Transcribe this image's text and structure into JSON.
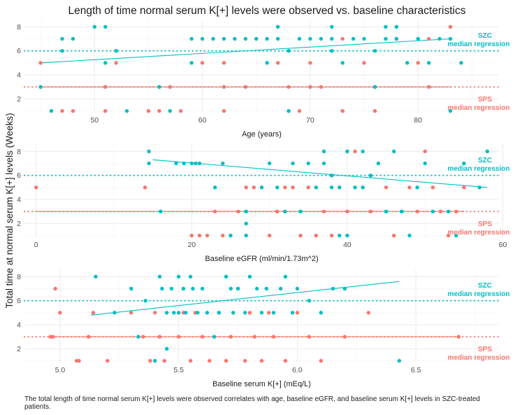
{
  "title": "Length of time normal serum K[+] levels were observed vs. baseline characteristics",
  "ylabel": "Total time at normal serum K[+] levels (Weeks)",
  "caption": "The total length of time normal serum K[+] levels were observed correlates with age, baseline eGFR, and baseline serum K[+] levels in SZC-treated patients.",
  "colors": {
    "SZC": "#00BFC4",
    "SPS": "#F8766D",
    "grid": "#ebebeb",
    "panel": "#ffffff"
  },
  "chart_data": [
    {
      "type": "scatter",
      "xlabel": "Age (years)",
      "xlim": [
        43.5,
        87.5
      ],
      "ylim": [
        0.8,
        8.6
      ],
      "xticks": [
        "50",
        "60",
        "70",
        "80"
      ],
      "yticks": [
        "2",
        "4",
        "6",
        "8"
      ],
      "grid": true,
      "annotations": [
        {
          "series": "SZC",
          "label": "SZC",
          "sublabel": "median regression",
          "y": 7.1
        },
        {
          "series": "SPS",
          "label": "SPS",
          "sublabel": "median regression",
          "y": 1.8
        }
      ],
      "series": [
        {
          "name": "SZC",
          "points": [
            [
              45,
              3
            ],
            [
              46,
              1
            ],
            [
              47,
              6
            ],
            [
              47,
              7
            ],
            [
              48,
              7
            ],
            [
              50,
              8
            ],
            [
              51,
              8
            ],
            [
              51,
              5
            ],
            [
              52,
              6
            ],
            [
              53,
              1
            ],
            [
              56,
              3
            ],
            [
              57,
              1
            ],
            [
              59,
              5
            ],
            [
              59,
              7
            ],
            [
              60,
              7
            ],
            [
              61,
              7
            ],
            [
              62,
              7
            ],
            [
              63,
              7
            ],
            [
              64,
              7
            ],
            [
              65,
              7
            ],
            [
              66,
              7
            ],
            [
              66,
              5
            ],
            [
              67,
              8
            ],
            [
              67,
              7
            ],
            [
              68,
              6
            ],
            [
              68,
              1
            ],
            [
              69,
              7
            ],
            [
              70,
              7
            ],
            [
              71,
              7
            ],
            [
              72,
              8
            ],
            [
              72,
              7
            ],
            [
              72,
              6
            ],
            [
              73,
              5
            ],
            [
              74,
              7
            ],
            [
              75,
              7
            ],
            [
              76,
              6
            ],
            [
              76,
              3
            ],
            [
              77,
              8
            ],
            [
              77,
              7
            ],
            [
              78,
              8
            ],
            [
              78,
              7
            ],
            [
              79,
              5
            ],
            [
              80,
              7
            ],
            [
              81,
              5
            ],
            [
              82,
              7
            ],
            [
              83,
              7
            ],
            [
              83,
              1
            ],
            [
              84,
              5
            ]
          ],
          "trend": {
            "style": "solid",
            "x": [
              45,
              83
            ],
            "y": [
              5.0,
              7.0
            ]
          },
          "median": 6
        },
        {
          "name": "SPS",
          "points": [
            [
              45,
              5
            ],
            [
              47,
              1
            ],
            [
              48,
              1
            ],
            [
              51,
              3
            ],
            [
              51,
              1
            ],
            [
              52,
              5
            ],
            [
              55,
              1
            ],
            [
              56,
              1
            ],
            [
              57,
              3
            ],
            [
              58,
              1
            ],
            [
              60,
              5
            ],
            [
              62,
              5
            ],
            [
              62,
              3
            ],
            [
              62,
              1
            ],
            [
              64,
              3
            ],
            [
              65,
              7
            ],
            [
              67,
              5
            ],
            [
              68,
              3
            ],
            [
              69,
              1
            ],
            [
              70,
              3
            ],
            [
              70,
              5
            ],
            [
              71,
              3
            ],
            [
              73,
              1
            ],
            [
              73,
              7
            ],
            [
              75,
              5
            ],
            [
              76,
              3
            ],
            [
              76,
              1
            ],
            [
              78,
              7
            ],
            [
              80,
              5
            ],
            [
              81,
              3
            ],
            [
              81,
              7
            ],
            [
              83,
              8
            ]
          ],
          "median": 3
        }
      ]
    },
    {
      "type": "scatter",
      "xlabel": "Baseline eGFR (ml/min/1.73m^2)",
      "xlim": [
        -1.5,
        59.5
      ],
      "ylim": [
        0.8,
        8.6
      ],
      "xticks": [
        "0",
        "20",
        "40",
        "60"
      ],
      "yticks": [
        "2",
        "4",
        "6",
        "8"
      ],
      "grid": true,
      "annotations": [
        {
          "series": "SZC",
          "label": "SZC",
          "sublabel": "median regression",
          "y": 7.1
        },
        {
          "series": "SPS",
          "label": "SPS",
          "sublabel": "median regression",
          "y": 1.8
        }
      ],
      "series": [
        {
          "name": "SZC",
          "points": [
            [
              14.5,
              8
            ],
            [
              14.5,
              7
            ],
            [
              16,
              3
            ],
            [
              18,
              7
            ],
            [
              19,
              7
            ],
            [
              20,
              7
            ],
            [
              20.5,
              7
            ],
            [
              21,
              7
            ],
            [
              23,
              5
            ],
            [
              24,
              7
            ],
            [
              25,
              1
            ],
            [
              27,
              3
            ],
            [
              27,
              2
            ],
            [
              27,
              1
            ],
            [
              29,
              5
            ],
            [
              30,
              7
            ],
            [
              31,
              5
            ],
            [
              32,
              3
            ],
            [
              33,
              7
            ],
            [
              34,
              3
            ],
            [
              35,
              7
            ],
            [
              36,
              5
            ],
            [
              37,
              8
            ],
            [
              37,
              7
            ],
            [
              38,
              5
            ],
            [
              38,
              6
            ],
            [
              39,
              5
            ],
            [
              39,
              1
            ],
            [
              40,
              8
            ],
            [
              40,
              1
            ],
            [
              41,
              5
            ],
            [
              42,
              8
            ],
            [
              42,
              5
            ],
            [
              43,
              6
            ],
            [
              44,
              7
            ],
            [
              45,
              3
            ],
            [
              46,
              8
            ],
            [
              47,
              3
            ],
            [
              48,
              1
            ],
            [
              49,
              5
            ],
            [
              50,
              7
            ],
            [
              51,
              3
            ],
            [
              53,
              3
            ],
            [
              54,
              1
            ],
            [
              55,
              7
            ],
            [
              57,
              5
            ],
            [
              58,
              8
            ]
          ],
          "trend": {
            "style": "solid",
            "x": [
              15,
              58
            ],
            "y": [
              7.3,
              5.0
            ]
          },
          "median": 6
        },
        {
          "name": "SPS",
          "points": [
            [
              0,
              5
            ],
            [
              14,
              5
            ],
            [
              20,
              1
            ],
            [
              21,
              1
            ],
            [
              22,
              1
            ],
            [
              23,
              3
            ],
            [
              24,
              1
            ],
            [
              25,
              1
            ],
            [
              26,
              3
            ],
            [
              27,
              5
            ],
            [
              28,
              5
            ],
            [
              29,
              5
            ],
            [
              30,
              1
            ],
            [
              31,
              3
            ],
            [
              32,
              5
            ],
            [
              33,
              5
            ],
            [
              34,
              1
            ],
            [
              35,
              5
            ],
            [
              36,
              1
            ],
            [
              37,
              3
            ],
            [
              38,
              1
            ],
            [
              39,
              5
            ],
            [
              40,
              3
            ],
            [
              41,
              8
            ],
            [
              42,
              5
            ],
            [
              43,
              3
            ],
            [
              44,
              7
            ],
            [
              45,
              5
            ],
            [
              46,
              1
            ],
            [
              47,
              3
            ],
            [
              48,
              5
            ],
            [
              49,
              3
            ],
            [
              50,
              8
            ],
            [
              51,
              5
            ],
            [
              52,
              3
            ],
            [
              53,
              1
            ],
            [
              54,
              3
            ],
            [
              55,
              5
            ]
          ],
          "median": 3
        }
      ]
    },
    {
      "type": "scatter",
      "xlabel": "Baseline serum K[+] (mEq/L)",
      "xlim": [
        4.85,
        6.85
      ],
      "ylim": [
        0.8,
        8.6
      ],
      "xticks": [
        "5.0",
        "5.5",
        "6.0",
        "6.5"
      ],
      "yticks": [
        "2",
        "4",
        "6",
        "8"
      ],
      "grid": true,
      "annotations": [
        {
          "series": "SZC",
          "label": "SZC",
          "sublabel": "median regression",
          "y": 7.1
        },
        {
          "series": "SPS",
          "label": "SPS",
          "sublabel": "median regression",
          "y": 1.8
        }
      ],
      "series": [
        {
          "name": "SZC",
          "points": [
            [
              5.15,
              8
            ],
            [
              5.23,
              5
            ],
            [
              5.3,
              7
            ],
            [
              5.33,
              3
            ],
            [
              5.36,
              6
            ],
            [
              5.4,
              1
            ],
            [
              5.42,
              8
            ],
            [
              5.43,
              7
            ],
            [
              5.45,
              5
            ],
            [
              5.45,
              2
            ],
            [
              5.47,
              7
            ],
            [
              5.48,
              5
            ],
            [
              5.5,
              8
            ],
            [
              5.5,
              5
            ],
            [
              5.52,
              7
            ],
            [
              5.53,
              5
            ],
            [
              5.55,
              8
            ],
            [
              5.56,
              7
            ],
            [
              5.58,
              5
            ],
            [
              5.6,
              7
            ],
            [
              5.62,
              5
            ],
            [
              5.65,
              3
            ],
            [
              5.67,
              5
            ],
            [
              5.7,
              8
            ],
            [
              5.72,
              7
            ],
            [
              5.73,
              5
            ],
            [
              5.75,
              7
            ],
            [
              5.78,
              5
            ],
            [
              5.8,
              8
            ],
            [
              5.83,
              7
            ],
            [
              5.85,
              5
            ],
            [
              5.87,
              7
            ],
            [
              5.9,
              5
            ],
            [
              5.93,
              7
            ],
            [
              5.95,
              8
            ],
            [
              5.98,
              5
            ],
            [
              6.0,
              7
            ],
            [
              6.05,
              6
            ],
            [
              6.1,
              5
            ],
            [
              6.15,
              7
            ],
            [
              6.2,
              7
            ],
            [
              6.43,
              1
            ]
          ],
          "trend": {
            "style": "solid",
            "x": [
              5.13,
              6.43
            ],
            "y": [
              4.8,
              7.6
            ]
          },
          "median": 6
        },
        {
          "name": "SPS",
          "points": [
            [
              4.96,
              3
            ],
            [
              4.97,
              3
            ],
            [
              4.98,
              7
            ],
            [
              5.0,
              5
            ],
            [
              5.07,
              1
            ],
            [
              5.08,
              1
            ],
            [
              5.12,
              3
            ],
            [
              5.14,
              5
            ],
            [
              5.2,
              1
            ],
            [
              5.3,
              5
            ],
            [
              5.35,
              3
            ],
            [
              5.38,
              1
            ],
            [
              5.4,
              5
            ],
            [
              5.42,
              3
            ],
            [
              5.44,
              1
            ],
            [
              5.5,
              3
            ],
            [
              5.52,
              5
            ],
            [
              5.55,
              1
            ],
            [
              5.57,
              5
            ],
            [
              5.6,
              3
            ],
            [
              5.63,
              1
            ],
            [
              5.67,
              5
            ],
            [
              5.7,
              1
            ],
            [
              5.72,
              3
            ],
            [
              5.75,
              7
            ],
            [
              5.78,
              1
            ],
            [
              5.8,
              5
            ],
            [
              5.82,
              3
            ],
            [
              5.85,
              1
            ],
            [
              5.88,
              5
            ],
            [
              5.9,
              3
            ],
            [
              5.95,
              1
            ],
            [
              6.0,
              5
            ],
            [
              6.05,
              3
            ],
            [
              6.1,
              1
            ],
            [
              6.2,
              3
            ],
            [
              6.3,
              5
            ],
            [
              6.68,
              3
            ]
          ],
          "median": 3
        }
      ]
    }
  ]
}
